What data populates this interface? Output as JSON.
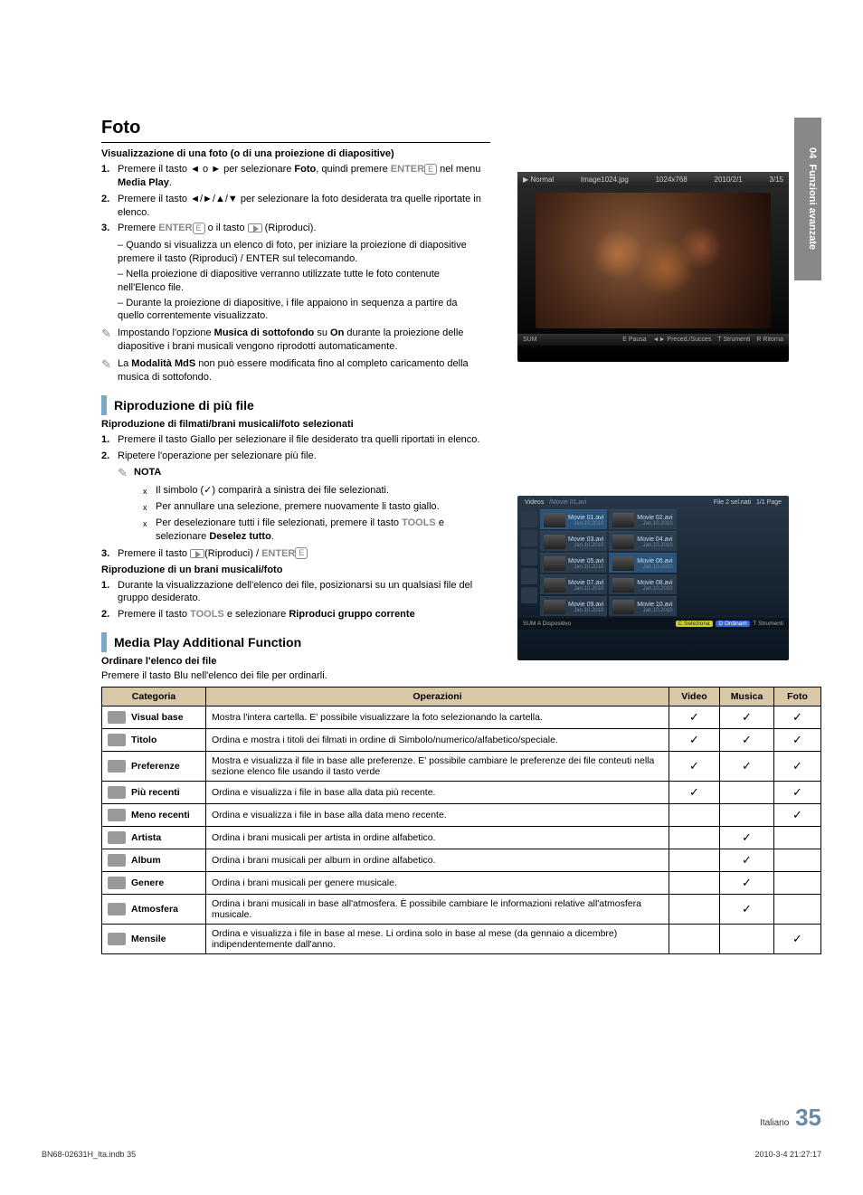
{
  "side_tab": {
    "chapter": "04",
    "title": "Funzioni avanzate"
  },
  "h1": "Foto",
  "section_photo": {
    "title": "Visualizzazione di una foto (o di una proiezione di diapositive)",
    "steps": [
      {
        "n": "1.",
        "pre": "Premere il tasto ◄ o ► per selezionare ",
        "b1": "Foto",
        "mid": ", quindi premere ",
        "b2": "ENTER",
        "post": " nel menu ",
        "b3": "Media Play",
        "end": "."
      },
      {
        "n": "2.",
        "txt": "Premere il tasto ◄/►/▲/▼ per selezionare la foto desiderata tra quelle riportate in elenco."
      },
      {
        "n": "3.",
        "pre": "Premere ",
        "b1": "ENTER",
        "mid": " o il tasto ",
        "post": " (Riproduci)."
      }
    ],
    "dashes": [
      "Quando si visualizza un elenco di foto, per iniziare la proiezione di diapositive premere il tasto (Riproduci) / ENTER sul telecomando.",
      "Nella proiezione di diapositive verranno utilizzate tutte le foto contenute nell'Elenco file.",
      "Durante la proiezione di diapositive, i file appaiono in sequenza a partire da quello correntemente visualizzato."
    ],
    "notes": [
      {
        "pre": "Impostando l'opzione ",
        "b1": "Musica di sottofondo",
        "mid": " su ",
        "b2": "On",
        "post": " durante la proiezione delle diapositive i brani musicali vengono riprodotti automaticamente."
      },
      {
        "pre": "La ",
        "b1": "Modalità MdS",
        "post": " non può essere modificata fino al completo caricamento della musica di sottofondo."
      }
    ]
  },
  "section_multi": {
    "head": "Riproduzione di più file",
    "sub1": "Riproduzione di filmati/brani musicali/foto selezionati",
    "steps1": [
      {
        "n": "1.",
        "txt": "Premere il tasto Giallo per selezionare il file desiderato tra quelli riportati in elenco."
      },
      {
        "n": "2.",
        "txt": "Ripetere l'operazione per selezionare più file."
      }
    ],
    "nota_label": "NOTA",
    "xbul": [
      "Il simbolo (✓) comparirà a sinistra dei file selezionati.",
      "Per annullare una selezione, premere nuovamente li tasto giallo."
    ],
    "dotbul_pre": "Per deselezionare tutti i file selezionati, premere il tasto ",
    "dotbul_b1": "TOOLS",
    "dotbul_mid": " e selezionare ",
    "dotbul_b2": "Deselez tutto",
    "dotbul_end": ".",
    "step3": {
      "n": "3.",
      "pre": "Premere il tasto ",
      "post": "(Riproduci) / ",
      "b1": "ENTER"
    },
    "sub2": "Riproduzione di un brani musicali/foto",
    "steps2": [
      {
        "n": "1.",
        "txt": "Durante la visualizzazione dell'elenco dei file, posizionarsi su un qualsiasi file del gruppo desiderato."
      },
      {
        "n": "2.",
        "pre": "Premere il tasto ",
        "b1": "TOOLS",
        "mid": " e selezionare ",
        "b2": "Riproduci gruppo corrente"
      }
    ]
  },
  "section_addl": {
    "head": "Media Play Additional Function",
    "sub": "Ordinare l'elenco dei file",
    "intro": "Premere il tasto Blu nell'elenco dei file per ordinarli.",
    "headers": {
      "cat": "Categoria",
      "op": "Operazioni",
      "video": "Video",
      "musica": "Musica",
      "foto": "Foto"
    },
    "rows": [
      {
        "cat": "Visual base",
        "op": "Mostra l'intera cartella. E' possibile visualizzare la foto selezionando la cartella.",
        "v": "✓",
        "m": "✓",
        "f": "✓"
      },
      {
        "cat": "Titolo",
        "op": "Ordina e mostra i titoli dei filmati in ordine di Simbolo/numerico/alfabetico/speciale.",
        "v": "✓",
        "m": "✓",
        "f": "✓"
      },
      {
        "cat": "Preferenze",
        "op": "Mostra e visualizza il file in base alle preferenze. E' possibile cambiare le preferenze dei file conteuti nella sezione elenco file usando il tasto verde",
        "v": "✓",
        "m": "✓",
        "f": "✓"
      },
      {
        "cat": "Più recenti",
        "op": "Ordina e visualizza i file in base alla data più recente.",
        "v": "✓",
        "m": "",
        "f": "✓"
      },
      {
        "cat": "Meno recenti",
        "op": "Ordina e visualizza i file in base alla data meno recente.",
        "v": "",
        "m": "",
        "f": "✓"
      },
      {
        "cat": "Artista",
        "op": "Ordina i brani musicali per artista in ordine alfabetico.",
        "v": "",
        "m": "✓",
        "f": ""
      },
      {
        "cat": "Album",
        "op": "Ordina i brani musicali per album in ordine alfabetico.",
        "v": "",
        "m": "✓",
        "f": ""
      },
      {
        "cat": "Genere",
        "op": "Ordina i brani musicali per genere musicale.",
        "v": "",
        "m": "✓",
        "f": ""
      },
      {
        "cat": "Atmosfera",
        "op": "Ordina i brani musicali in base all'atmosfera. È possibile cambiare le informazioni relative all'atmosfera musicale.",
        "v": "",
        "m": "✓",
        "f": ""
      },
      {
        "cat": "Mensile",
        "op": "Ordina e visualizza i file in base al mese. Li ordina solo in base al mese (da gennaio a dicembre) indipendentemente dall'anno.",
        "v": "",
        "m": "",
        "f": "✓"
      }
    ]
  },
  "photo_panel": {
    "mode": "▶ Normal",
    "file": "Image1024.jpg",
    "res": "1024x768",
    "date": "2010/2/1",
    "idx": "3/15",
    "sum": "SUM",
    "btns": [
      "E Pausa",
      "◄► Preced./Succes",
      "T Strumenti",
      "R Ritorna"
    ]
  },
  "video_panel": {
    "title": "Videos",
    "path": "/Movie 01.avi",
    "sel": "File 2 sel.nati",
    "page": "1/1 Page",
    "files": [
      {
        "n": "Movie 01.avi",
        "d": "Jan.10.2010",
        "sel": true
      },
      {
        "n": "Movie 02.avi",
        "d": "Jan.10.2010"
      },
      {
        "n": "Movie 03.avi",
        "d": "Jan.10.2010"
      },
      {
        "n": "Movie 04.avi",
        "d": "Jan.10.2010"
      },
      {
        "n": "Movie 05.avi",
        "d": "Jan.10.2010"
      },
      {
        "n": "Movie 06.avi",
        "d": "Jan.10.2010",
        "sel": true
      },
      {
        "n": "Movie 07.avi",
        "d": "Jan.10.2010"
      },
      {
        "n": "Movie 08.avi",
        "d": "Jan.10.2010"
      },
      {
        "n": "Movie 09.avi",
        "d": "Jan.10.2010"
      },
      {
        "n": "Movie 10.avi",
        "d": "Jan.10.2010"
      }
    ],
    "bottom_left": "SUM  A Dispositivo",
    "bottom_right": [
      "C Seleziona",
      "D Ordinam",
      "T Strumenti"
    ]
  },
  "footer": {
    "left": "BN68-02631H_Ita.indb   35",
    "lang": "Italiano",
    "page": "35",
    "right": "2010-3-4   21:27:17"
  }
}
